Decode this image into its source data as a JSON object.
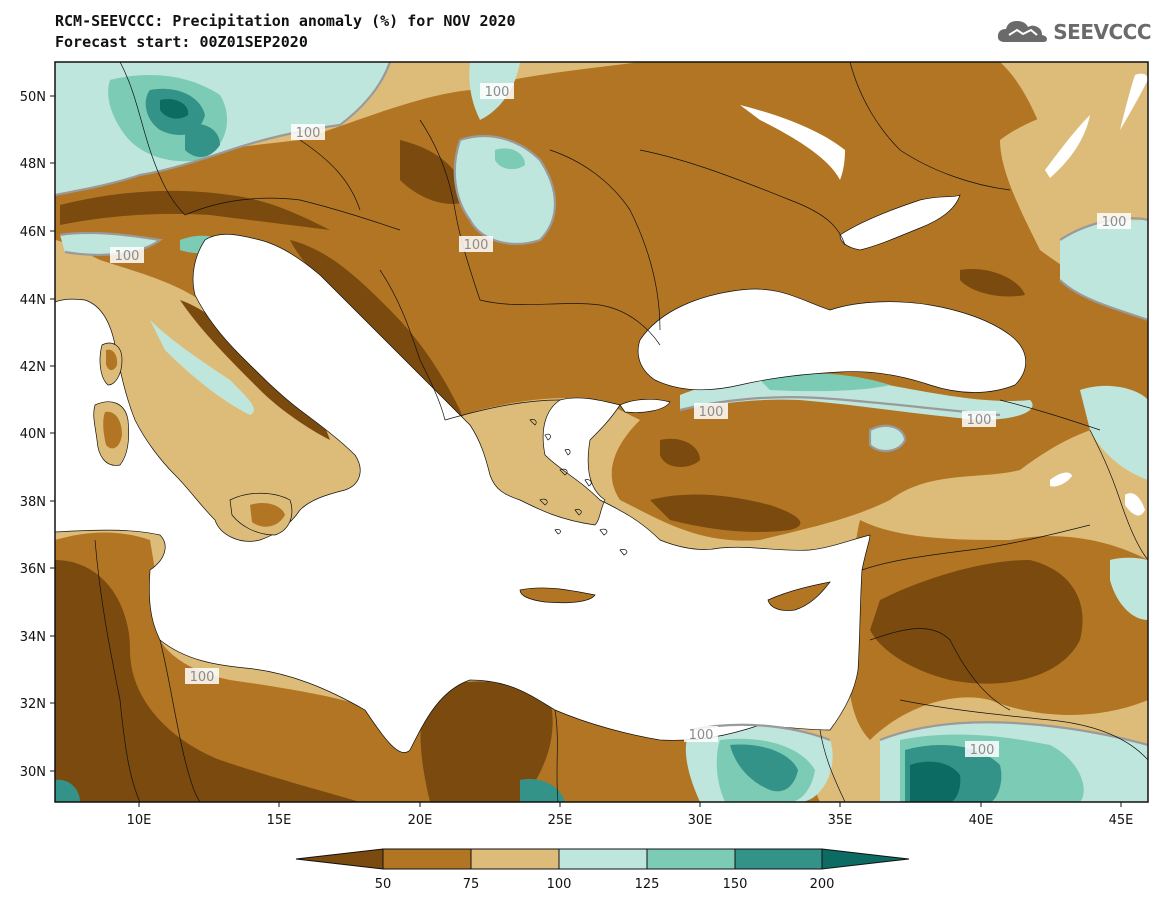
{
  "header": {
    "title_line1": "RCM-SEEVCCC: Precipitation anomaly (%) for NOV 2020",
    "title_line2": "Forecast start: 00Z01SEP2020"
  },
  "logo": {
    "text": "SEEVCCC",
    "icon": "cloud-icon"
  },
  "map": {
    "lat_labels": [
      "50N",
      "48N",
      "46N",
      "44N",
      "42N",
      "40N",
      "38N",
      "36N",
      "34N",
      "32N",
      "30N"
    ],
    "lon_labels": [
      "10E",
      "15E",
      "20E",
      "25E",
      "30E",
      "35E",
      "40E",
      "45E"
    ],
    "contour_labels": [
      "100",
      "100",
      "100",
      "100",
      "100",
      "100",
      "100",
      "100",
      "100",
      "100"
    ]
  },
  "colorbar": {
    "labels": [
      "50",
      "75",
      "100",
      "125",
      "150",
      "200"
    ],
    "colors": [
      "#7a4a0e",
      "#b27524",
      "#ddbc79",
      "#bfe6dc",
      "#7ccbb5",
      "#339388",
      "#0c6b62"
    ]
  },
  "colors": {
    "very_dry": "#7a4a0e",
    "dry": "#b27524",
    "slightly_dry": "#ddbc79",
    "slightly_wet": "#bfe6dc",
    "wet": "#7ccbb5",
    "very_wet": "#339388",
    "extreme_wet": "#0c6b62",
    "water": "#ffffff"
  }
}
